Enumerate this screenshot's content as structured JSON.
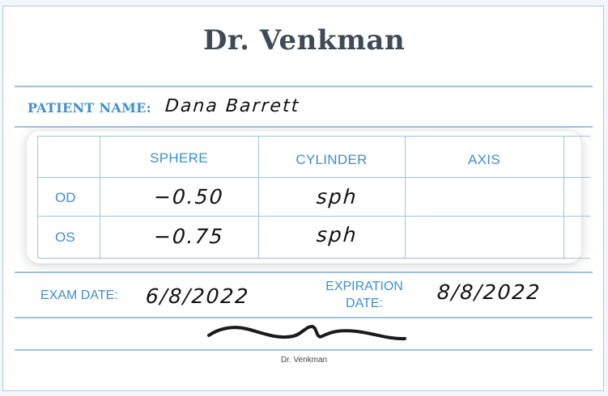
{
  "doctor": {
    "name": "Dr. Venkman"
  },
  "patient": {
    "label": "PATIENT NAME:",
    "name": "Dana Barrett"
  },
  "prescription": {
    "columns": [
      "SPHERE",
      "CYLINDER",
      "AXIS"
    ],
    "rows": [
      {
        "eye": "OD",
        "sphere": "−0.50",
        "cylinder": "sph",
        "axis": ""
      },
      {
        "eye": "OS",
        "sphere": "−0.75",
        "cylinder": "sph",
        "axis": ""
      }
    ]
  },
  "exam": {
    "label": "EXAM DATE:",
    "date": "6/8/2022"
  },
  "expiration": {
    "label_line1": "EXPIRATION",
    "label_line2": "DATE:",
    "date": "8/8/2022"
  },
  "signature": {
    "caption": "Dr. Venkman",
    "icon": "handwritten-signature"
  },
  "colors": {
    "accent": "#3c8fd0",
    "rule": "#9ec3e0",
    "title": "#3e4a57"
  }
}
